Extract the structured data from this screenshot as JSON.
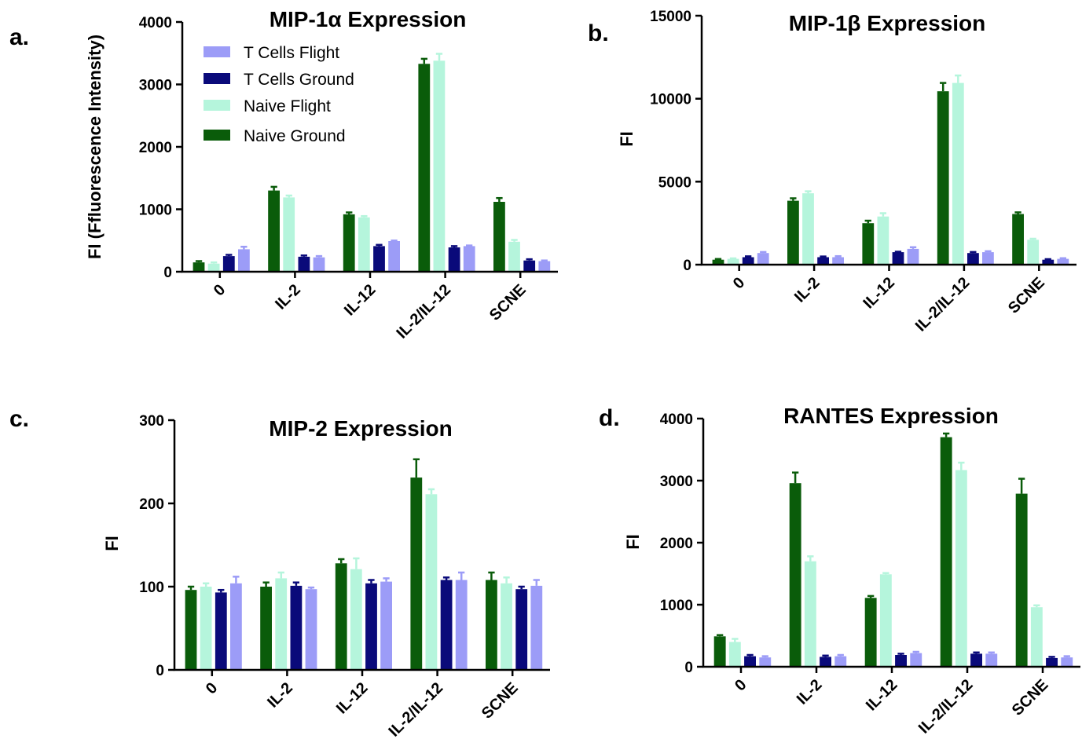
{
  "legend": [
    {
      "key": "tcf",
      "label": "T Cells Flight"
    },
    {
      "key": "tcg",
      "label": "T Cells Ground"
    },
    {
      "key": "nf",
      "label": "Naive Flight"
    },
    {
      "key": "ng",
      "label": "Naive Ground"
    }
  ],
  "colors": {
    "ng": "#0a5c0a",
    "nf": "#b5f5dc",
    "tcg": "#0a0a7a",
    "tcf": "#9c9cf7"
  },
  "chart_data": [
    {
      "type": "bar",
      "letter": "a.",
      "title": "MIP-1α Expression",
      "ylabel": "FI (Ffluorescence Intensity)",
      "ylim": [
        0,
        4000
      ],
      "yticks": [
        0,
        1000,
        2000,
        3000,
        4000
      ],
      "categories": [
        "0",
        "IL-2",
        "IL-12",
        "IL-2/IL-12",
        "SCNE"
      ],
      "series": [
        {
          "key": "ng",
          "name": "Naive Ground",
          "values": [
            150,
            1300,
            920,
            3330,
            1120
          ],
          "errors": [
            20,
            60,
            30,
            80,
            60
          ]
        },
        {
          "key": "nf",
          "name": "Naive Flight",
          "values": [
            130,
            1190,
            870,
            3380,
            480
          ],
          "errors": [
            20,
            30,
            20,
            110,
            30
          ]
        },
        {
          "key": "tcg",
          "name": "T Cells Ground",
          "values": [
            250,
            240,
            410,
            390,
            180
          ],
          "errors": [
            20,
            20,
            20,
            20,
            20
          ]
        },
        {
          "key": "tcf",
          "name": "T Cells Flight",
          "values": [
            360,
            230,
            490,
            410,
            170
          ],
          "errors": [
            40,
            20,
            10,
            10,
            10
          ]
        }
      ]
    },
    {
      "type": "bar",
      "letter": "b.",
      "title": "MIP-1β Expression",
      "ylabel": "FI",
      "ylim": [
        0,
        15000
      ],
      "yticks": [
        0,
        5000,
        10000,
        15000
      ],
      "categories": [
        "0",
        "IL-2",
        "IL-12",
        "IL-2/IL-12",
        "SCNE"
      ],
      "series": [
        {
          "key": "ng",
          "name": "Naive Ground",
          "values": [
            300,
            3850,
            2500,
            10450,
            3050
          ],
          "errors": [
            40,
            150,
            150,
            500,
            100
          ]
        },
        {
          "key": "nf",
          "name": "Naive Flight",
          "values": [
            350,
            4300,
            2900,
            10950,
            1500
          ],
          "errors": [
            30,
            120,
            200,
            450,
            60
          ]
        },
        {
          "key": "tcg",
          "name": "T Cells Ground",
          "values": [
            450,
            450,
            750,
            700,
            300
          ],
          "errors": [
            50,
            40,
            30,
            60,
            30
          ]
        },
        {
          "key": "tcf",
          "name": "T Cells Flight",
          "values": [
            700,
            450,
            950,
            750,
            350
          ],
          "errors": [
            60,
            60,
            100,
            60,
            40
          ]
        }
      ]
    },
    {
      "type": "bar",
      "letter": "c.",
      "title": "MIP-2 Expression",
      "ylabel": "FI",
      "ylim": [
        0,
        300
      ],
      "yticks": [
        0,
        100,
        200,
        300
      ],
      "categories": [
        "0",
        "IL-2",
        "IL-12",
        "IL-2/IL-12",
        "SCNE"
      ],
      "series": [
        {
          "key": "ng",
          "name": "Naive Ground",
          "values": [
            96,
            100,
            128,
            231,
            108
          ],
          "errors": [
            4,
            5,
            5,
            22,
            9
          ]
        },
        {
          "key": "nf",
          "name": "Naive Flight",
          "values": [
            100,
            110,
            121,
            211,
            104
          ],
          "errors": [
            4,
            7,
            13,
            6,
            7
          ]
        },
        {
          "key": "tcg",
          "name": "T Cells Ground",
          "values": [
            93,
            101,
            104,
            108,
            97
          ],
          "errors": [
            3,
            4,
            4,
            3,
            3
          ]
        },
        {
          "key": "tcf",
          "name": "T Cells Flight",
          "values": [
            104,
            97,
            106,
            108,
            101
          ],
          "errors": [
            8,
            2,
            4,
            9,
            7
          ]
        }
      ]
    },
    {
      "type": "bar",
      "letter": "d.",
      "title": "RANTES Expression",
      "ylabel": "FI",
      "ylim": [
        0,
        4000
      ],
      "yticks": [
        0,
        1000,
        2000,
        3000,
        4000
      ],
      "categories": [
        "0",
        "IL-2",
        "IL-12",
        "IL-2/IL-12",
        "SCNE"
      ],
      "series": [
        {
          "key": "ng",
          "name": "Naive Ground",
          "values": [
            490,
            2960,
            1110,
            3700,
            2790
          ],
          "errors": [
            20,
            170,
            30,
            60,
            240
          ]
        },
        {
          "key": "nf",
          "name": "Naive Flight",
          "values": [
            400,
            1700,
            1490,
            3170,
            960
          ],
          "errors": [
            50,
            80,
            20,
            120,
            30
          ]
        },
        {
          "key": "tcg",
          "name": "T Cells Ground",
          "values": [
            170,
            160,
            190,
            210,
            140
          ],
          "errors": [
            20,
            20,
            20,
            20,
            20
          ]
        },
        {
          "key": "tcf",
          "name": "T Cells Flight",
          "values": [
            150,
            170,
            220,
            210,
            150
          ],
          "errors": [
            20,
            20,
            20,
            20,
            20
          ]
        }
      ]
    }
  ]
}
